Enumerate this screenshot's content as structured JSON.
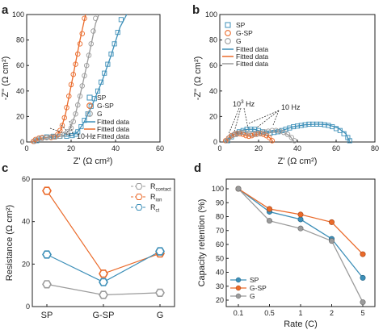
{
  "colors": {
    "SP": "#3d8fb8",
    "G-SP": "#ea6a2a",
    "G": "#9b9b9b",
    "axis": "#222222",
    "annot": "#333333"
  },
  "chart_data": [
    {
      "panel": "a",
      "type": "scatter",
      "xlabel": "Z' (Ω cm²)",
      "ylabel": "-Z'' (Ω cm²)",
      "xlim": [
        0,
        60
      ],
      "ylim": [
        0,
        100
      ],
      "xticks": [
        0,
        20,
        40,
        60
      ],
      "yticks": [
        0,
        20,
        40,
        60,
        80,
        100
      ],
      "legend": {
        "position": "bottom-right",
        "entries": [
          "SP",
          "G-SP",
          "G",
          "Fitted data",
          "Fitted data",
          "Fitted data"
        ]
      },
      "annotations": [
        "10 Hz"
      ],
      "series": [
        {
          "name": "SP",
          "marker": "square",
          "x": [
            4.5,
            6.5,
            9,
            12,
            15,
            18,
            20.5,
            22,
            23,
            24.5,
            26,
            27.5,
            29,
            30.5,
            32,
            33.5,
            35,
            36.5,
            38,
            39.5,
            41,
            42.5
          ],
          "y": [
            1,
            3,
            4,
            4.5,
            4.5,
            4.5,
            5,
            6,
            8,
            12,
            17,
            22,
            28,
            34,
            40,
            47,
            54,
            61,
            69,
            77,
            86,
            96
          ]
        },
        {
          "name": "G-SP",
          "marker": "circle",
          "x": [
            3,
            4,
            5.5,
            7,
            9,
            11,
            12.5,
            14,
            15,
            16,
            17,
            18,
            19,
            20,
            21,
            22,
            23,
            24,
            25,
            26
          ],
          "y": [
            0.5,
            2,
            3,
            3.5,
            3.5,
            3.5,
            4,
            6,
            9,
            13,
            19,
            27,
            36,
            45,
            53,
            61,
            69,
            77,
            85,
            97
          ]
        },
        {
          "name": "G",
          "marker": "circle-light",
          "x": [
            3.5,
            5,
            7,
            9,
            11,
            13,
            15,
            17,
            18.5,
            20,
            21,
            22,
            23,
            24,
            25,
            26,
            27,
            28,
            29,
            30,
            31
          ],
          "y": [
            0.5,
            2,
            3,
            3.5,
            4,
            4,
            4.5,
            6,
            8,
            11,
            16,
            22,
            29,
            36,
            44,
            52,
            60,
            68,
            77,
            87,
            97
          ]
        }
      ],
      "fits": [
        {
          "name": "Fitted data",
          "series": "SP",
          "x": [
            3,
            6,
            10,
            14,
            18,
            21,
            23,
            26,
            30,
            34,
            38,
            42,
            45
          ],
          "y": [
            0,
            2.5,
            4,
            4.5,
            4.5,
            5.5,
            8,
            16,
            31,
            48,
            68,
            90,
            100
          ]
        },
        {
          "name": "Fitted data",
          "series": "G-SP",
          "x": [
            2.5,
            5,
            8,
            11,
            13.5,
            15.5,
            17.5,
            20,
            22,
            24,
            26.5
          ],
          "y": [
            0,
            2.5,
            3.5,
            3.5,
            5,
            10,
            22,
            44,
            62,
            80,
            100
          ]
        },
        {
          "name": "Fitted data",
          "series": "G",
          "x": [
            3,
            6,
            10,
            14,
            17,
            19.5,
            22,
            25,
            28,
            31,
            32.5
          ],
          "y": [
            0,
            2.5,
            3.5,
            4,
            5.5,
            10,
            22,
            44,
            68,
            93,
            100
          ]
        }
      ]
    },
    {
      "panel": "b",
      "type": "scatter",
      "xlabel": "Z' (Ω cm²)",
      "ylabel": "-Z'' (Ω cm²)",
      "xlim": [
        0,
        80
      ],
      "ylim": [
        0,
        100
      ],
      "xticks": [
        0,
        20,
        40,
        60,
        80
      ],
      "yticks": [
        0,
        20,
        40,
        60,
        80,
        100
      ],
      "legend": {
        "position": "top-left",
        "entries": [
          "SP",
          "G-SP",
          "G",
          "Fitted data",
          "Fitted data",
          "Fitted data"
        ]
      },
      "annotations": [
        "10³ Hz",
        "10 Hz"
      ],
      "series": [
        {
          "name": "SP",
          "marker": "square",
          "x": [
            4,
            6,
            8,
            10,
            12,
            14,
            16,
            18,
            20,
            22,
            24,
            26,
            28,
            30,
            32,
            34,
            36,
            38,
            40,
            42,
            44,
            46,
            48,
            50,
            52,
            54,
            56,
            58,
            60,
            62,
            64,
            66,
            67
          ],
          "y": [
            1,
            4,
            6,
            8,
            9,
            10,
            10,
            10,
            9,
            8,
            7,
            7,
            7.5,
            8,
            9,
            10,
            11,
            12,
            12.5,
            13,
            13.5,
            14,
            14,
            14,
            14,
            13.5,
            13,
            12,
            10.5,
            9,
            6.5,
            3.5,
            1
          ]
        },
        {
          "name": "G-SP",
          "marker": "circle",
          "x": [
            3,
            4.5,
            6,
            7.5,
            9,
            10.5,
            12,
            13.5,
            15,
            16.5,
            18,
            19.5,
            21,
            22.5,
            24,
            25.5,
            27
          ],
          "y": [
            1,
            3,
            5,
            6,
            6.5,
            6.5,
            6,
            5,
            4.5,
            5,
            6,
            6.5,
            6.5,
            6,
            5,
            3.5,
            1
          ]
        },
        {
          "name": "G",
          "marker": "circle-light",
          "x": [
            3.5,
            5,
            7,
            9,
            11,
            13,
            15,
            17,
            19,
            21,
            23,
            25,
            27,
            29,
            31,
            33,
            35,
            37,
            38.5
          ],
          "y": [
            1,
            3.5,
            5.5,
            7,
            7.5,
            7.5,
            7,
            6,
            6,
            7,
            8,
            8.5,
            9,
            9,
            8.5,
            7.5,
            6,
            3.5,
            1
          ]
        }
      ],
      "fits": [
        {
          "name": "Fitted data",
          "series": "SP",
          "x": [
            3,
            6,
            9,
            12,
            15,
            18,
            21,
            24,
            27,
            32,
            38,
            44,
            50,
            56,
            61,
            65,
            67
          ],
          "y": [
            0,
            4.5,
            7.5,
            9.5,
            10,
            10,
            8.5,
            7,
            7.5,
            9,
            12,
            13.5,
            14,
            13.5,
            11,
            6.5,
            0
          ]
        },
        {
          "name": "Fitted data",
          "series": "G-SP",
          "x": [
            2.5,
            5,
            8,
            11,
            14,
            16,
            18,
            21,
            24,
            26,
            27.5
          ],
          "y": [
            0,
            4,
            6.5,
            6.5,
            5,
            4.5,
            5.5,
            6.5,
            5.5,
            3,
            0
          ]
        },
        {
          "name": "Fitted data",
          "series": "G",
          "x": [
            3,
            6,
            9,
            12,
            15,
            18,
            21,
            25,
            29,
            33,
            36,
            38.5
          ],
          "y": [
            0,
            4.5,
            7,
            7.5,
            7,
            6,
            6.5,
            8.5,
            9,
            7.5,
            5,
            0
          ]
        }
      ]
    },
    {
      "panel": "c",
      "type": "line",
      "ylabel": "Resistance (Ω cm²)",
      "categories": [
        "SP",
        "G-SP",
        "G"
      ],
      "ylim": [
        0,
        60
      ],
      "yticks": [
        0,
        20,
        40,
        60
      ],
      "legend": {
        "position": "top-right",
        "entries": [
          "R_contact",
          "R_ion",
          "R_ct"
        ]
      },
      "series": [
        {
          "name": "R_contact",
          "color_key": "G",
          "values": [
            10.5,
            5.5,
            6.5
          ]
        },
        {
          "name": "R_ion",
          "color_key": "G-SP",
          "values": [
            54.5,
            15.5,
            25
          ]
        },
        {
          "name": "R_ct",
          "color_key": "SP",
          "values": [
            24.5,
            11.5,
            26
          ]
        }
      ]
    },
    {
      "panel": "d",
      "type": "line",
      "xlabel": "Rate (C)",
      "ylabel": "Capacity retention (%)",
      "categories": [
        "0.1",
        "0.5",
        "1",
        "2",
        "5"
      ],
      "ylim": [
        20,
        100
      ],
      "yticks": [
        20,
        30,
        40,
        50,
        60,
        70,
        80,
        90,
        100
      ],
      "legend": {
        "position": "bottom-left",
        "entries": [
          "SP",
          "G-SP",
          "G"
        ]
      },
      "series": [
        {
          "name": "SP",
          "values": [
            100,
            83.5,
            78,
            64,
            36
          ]
        },
        {
          "name": "G-SP",
          "values": [
            100,
            85.5,
            81.5,
            76,
            53
          ]
        },
        {
          "name": "G",
          "values": [
            100,
            77,
            71.5,
            62.5,
            18.5
          ]
        }
      ]
    }
  ],
  "panel_labels": [
    "a",
    "b",
    "c",
    "d"
  ],
  "legend_text": {
    "sp": "SP",
    "gsp": "G-SP",
    "g": "G",
    "fit": "Fitted data",
    "r_contact_main": "R",
    "r_contact_sub": "contact",
    "r_ion_main": "R",
    "r_ion_sub": "ion",
    "r_ct_main": "R",
    "r_ct_sub": "ct"
  },
  "annotations": {
    "a_10hz": "10 Hz",
    "b_1e3hz_base": "10",
    "b_1e3hz_exp": "3",
    "b_1e3hz_unit": " Hz",
    "b_10hz": "10 Hz"
  },
  "axis_text": {
    "a_xlabel": "Z' (Ω cm²)",
    "a_ylabel": "-Z'' (Ω cm²)",
    "b_xlabel": "Z' (Ω cm²)",
    "b_ylabel": "-Z'' (Ω cm²)",
    "c_ylabel": "Resistance (Ω cm²)",
    "d_xlabel": "Rate (C)",
    "d_ylabel": "Capacity retention (%)"
  }
}
